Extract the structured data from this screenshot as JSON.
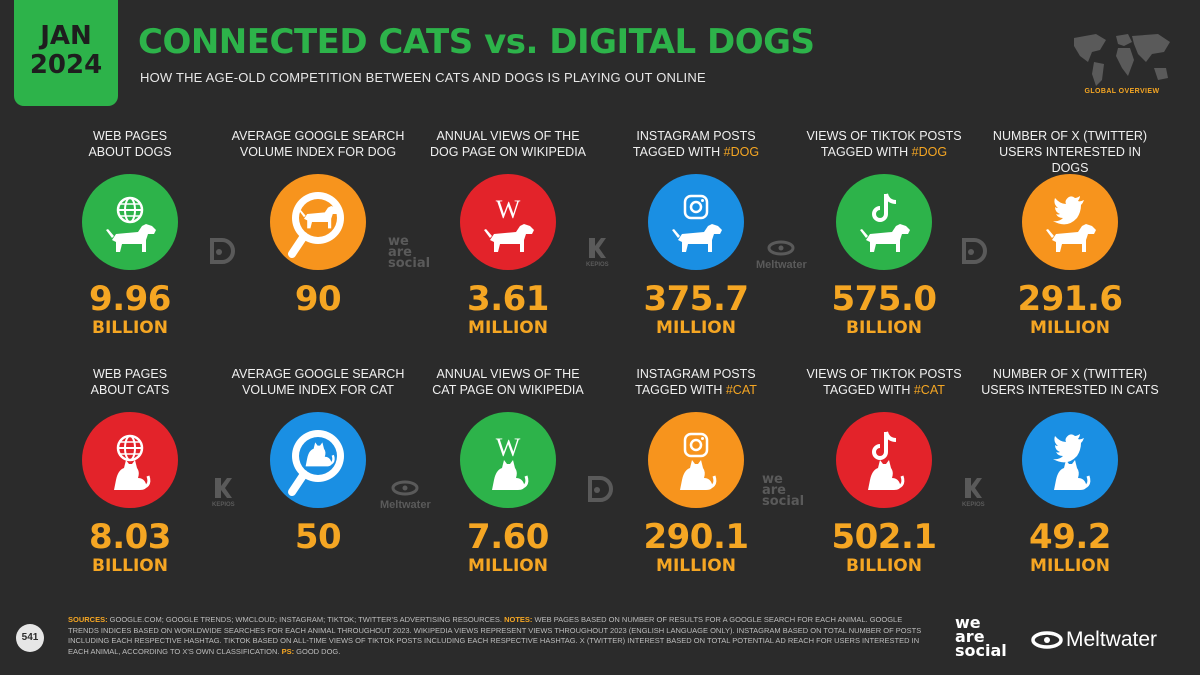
{
  "badge": {
    "line1": "JAN",
    "line2": "2024"
  },
  "title": "CONNECTED CATS vs. DIGITAL DOGS",
  "subtitle": "HOW THE AGE-OLD COMPETITION BETWEEN CATS AND DOGS IS PLAYING OUT ONLINE",
  "global_label": "GLOBAL OVERVIEW",
  "colors": {
    "green": "#2db34a",
    "orange": "#f7941d",
    "red": "#e3232a",
    "blue": "#1a8fe3",
    "accent": "#f5a623"
  },
  "dogs": [
    {
      "label1": "WEB PAGES",
      "label2": "ABOUT DOGS",
      "value": "9.96",
      "unit": "BILLION",
      "color": "green",
      "icon": "globe-dog-icon"
    },
    {
      "label1": "AVERAGE GOOGLE SEARCH",
      "label2": "VOLUME INDEX FOR DOG",
      "value": "90",
      "unit": "",
      "color": "orange",
      "icon": "magnifier-dog-icon"
    },
    {
      "label1": "ANNUAL VIEWS OF THE",
      "label2": "DOG PAGE ON WIKIPEDIA",
      "value": "3.61",
      "unit": "MILLION",
      "color": "red",
      "icon": "wikipedia-dog-icon"
    },
    {
      "label1": "INSTAGRAM POSTS",
      "label2": "TAGGED WITH ",
      "hashtag": "#DOG",
      "value": "375.7",
      "unit": "MILLION",
      "color": "blue",
      "icon": "instagram-dog-icon"
    },
    {
      "label1": "VIEWS OF TIKTOK POSTS",
      "label2": "TAGGED WITH ",
      "hashtag": "#DOG",
      "value": "575.0",
      "unit": "BILLION",
      "color": "green",
      "icon": "tiktok-dog-icon"
    },
    {
      "label1": "NUMBER OF X (TWITTER)",
      "label2": "USERS INTERESTED IN DOGS",
      "value": "291.6",
      "unit": "MILLION",
      "color": "orange",
      "icon": "twitter-dog-icon"
    }
  ],
  "cats": [
    {
      "label1": "WEB PAGES",
      "label2": "ABOUT CATS",
      "value": "8.03",
      "unit": "BILLION",
      "color": "red",
      "icon": "globe-cat-icon"
    },
    {
      "label1": "AVERAGE GOOGLE SEARCH",
      "label2": "VOLUME INDEX FOR CAT",
      "value": "50",
      "unit": "",
      "color": "blue",
      "icon": "magnifier-cat-icon"
    },
    {
      "label1": "ANNUAL VIEWS OF THE",
      "label2": "CAT PAGE ON WIKIPEDIA",
      "value": "7.60",
      "unit": "MILLION",
      "color": "green",
      "icon": "wikipedia-cat-icon"
    },
    {
      "label1": "INSTAGRAM POSTS",
      "label2": "TAGGED WITH ",
      "hashtag": "#CAT",
      "value": "290.1",
      "unit": "MILLION",
      "color": "orange",
      "icon": "instagram-cat-icon"
    },
    {
      "label1": "VIEWS OF TIKTOK POSTS",
      "label2": "TAGGED WITH ",
      "hashtag": "#CAT",
      "value": "502.1",
      "unit": "BILLION",
      "color": "red",
      "icon": "tiktok-cat-icon"
    },
    {
      "label1": "NUMBER OF X (TWITTER)",
      "label2": "USERS INTERESTED IN CATS",
      "value": "49.2",
      "unit": "MILLION",
      "color": "blue",
      "icon": "twitter-cat-icon"
    }
  ],
  "watermarks": {
    "we": "we",
    "are": "are",
    "social": "social",
    "meltwater": "Meltwater",
    "kepios": "KEPIOS"
  },
  "footer": {
    "page_number": "541",
    "sources_label": "SOURCES:",
    "sources": " GOOGLE.COM; GOOGLE TRENDS; WMCLOUD; INSTAGRAM; TIKTOK; TWITTER'S ADVERTISING RESOURCES. ",
    "notes_label": "NOTES:",
    "notes": " WEB PAGES BASED ON NUMBER OF RESULTS FOR A GOOGLE SEARCH FOR EACH ANIMAL. GOOGLE TRENDS INDICES BASED ON WORLDWIDE SEARCHES FOR EACH ANIMAL THROUGHOUT 2023. WIKIPEDIA VIEWS REPRESENT VIEWS THROUGHOUT 2023 (ENGLISH LANGUAGE ONLY). INSTAGRAM BASED ON TOTAL NUMBER OF POSTS INCLUDING EACH RESPECTIVE HASHTAG. TIKTOK BASED ON ALL-TIME VIEWS OF TIKTOK POSTS INCLUDING EACH RESPECTIVE HASHTAG. X (TWITTER) INTEREST BASED ON TOTAL POTENTIAL AD REACH FOR USERS INTERESTED IN EACH ANIMAL, ACCORDING TO X'S OWN CLASSIFICATION. ",
    "ps_label": "PS:",
    "ps": " GOOD DOG."
  },
  "logos": {
    "we": "we",
    "are": "are",
    "social": "social",
    "meltwater": "Meltwater"
  }
}
